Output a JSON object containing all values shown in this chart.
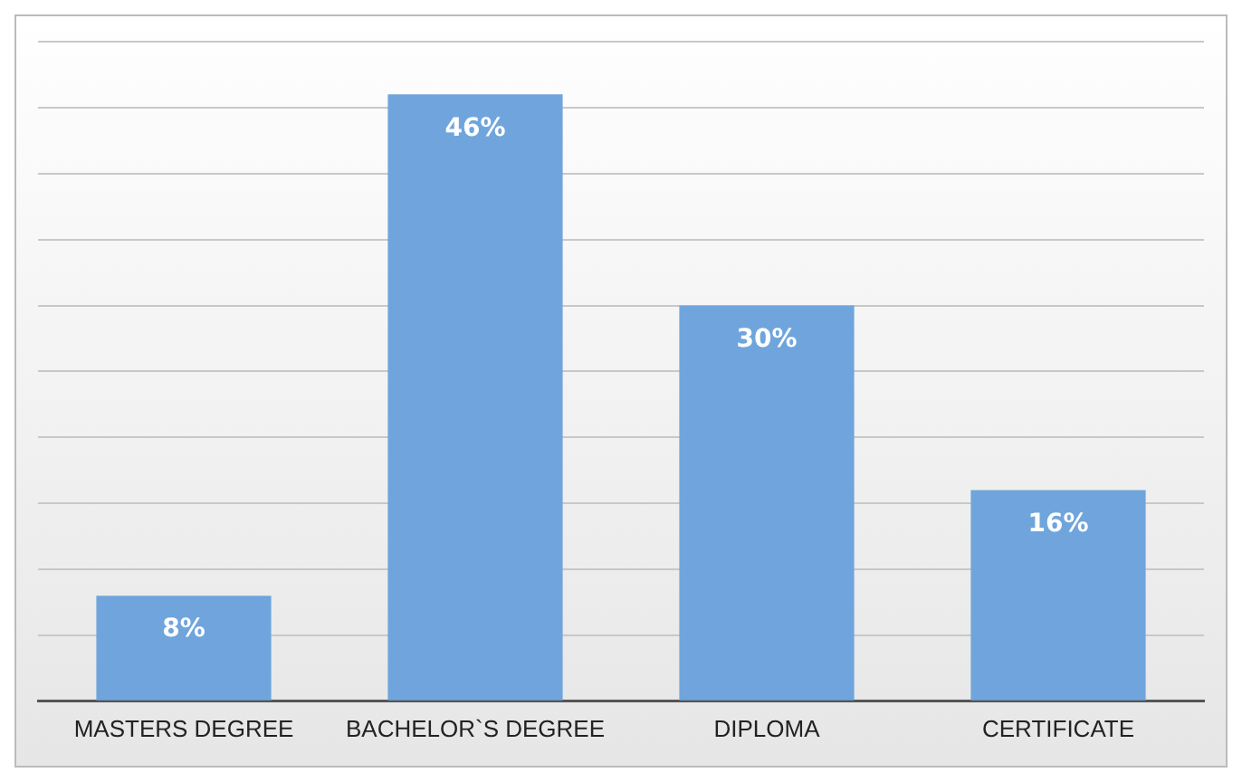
{
  "chart_data": {
    "type": "bar",
    "categories": [
      "MASTERS DEGREE",
      "BACHELOR`S DEGREE",
      "DIPLOMA",
      "CERTIFICATE"
    ],
    "values": [
      8,
      46,
      30,
      16
    ],
    "value_labels": [
      "8%",
      "46%",
      "30%",
      "16%"
    ],
    "color": "#6fa5dc",
    "ylim": [
      0,
      50
    ],
    "yticks": [
      {
        "value": 0,
        "label": null
      },
      {
        "value": 5,
        "label": null
      },
      {
        "value": 10,
        "label": null
      },
      {
        "value": 15,
        "label": null
      },
      {
        "value": 20,
        "label": null
      },
      {
        "value": 25,
        "label": null
      },
      {
        "value": 30,
        "label": null
      },
      {
        "value": 35,
        "label": null
      },
      {
        "value": 40,
        "label": null
      },
      {
        "value": 45,
        "label": null
      },
      {
        "value": 50,
        "label": null
      }
    ],
    "grid": "y",
    "tick_labels": "x"
  }
}
